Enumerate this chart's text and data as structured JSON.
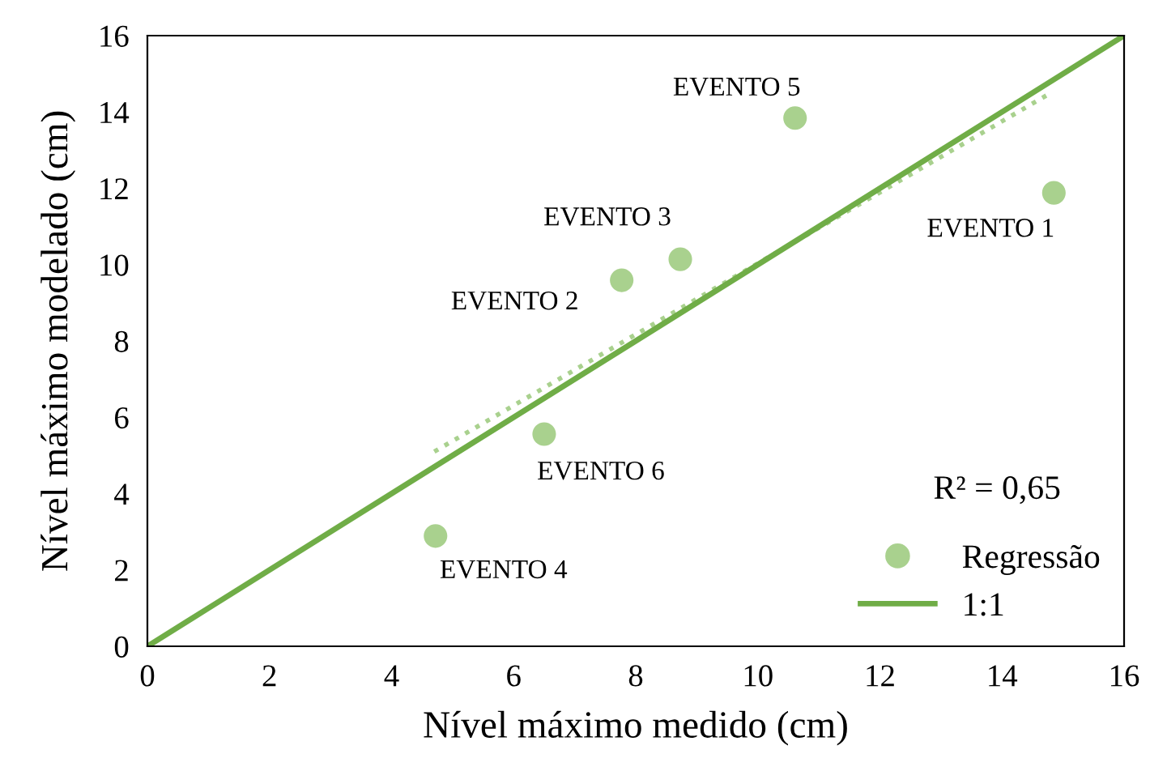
{
  "chart_data": {
    "type": "scatter",
    "xlabel": "Nível máximo medido (cm)",
    "ylabel": "Nível máximo modelado (cm)",
    "xlim": [
      0,
      16
    ],
    "ylim": [
      0,
      16
    ],
    "xticks": [
      0,
      2,
      4,
      6,
      8,
      10,
      12,
      14,
      16
    ],
    "yticks": [
      0,
      2,
      4,
      6,
      8,
      10,
      12,
      14,
      16
    ],
    "grid": false,
    "legend": "bottom right",
    "series": [
      {
        "name": "Regressão",
        "color": "#a9d18e",
        "marker": "circle",
        "x": [
          14.85,
          7.77,
          8.73,
          4.72,
          10.61,
          6.5
        ],
        "values": [
          11.88,
          9.59,
          10.14,
          2.89,
          13.84,
          5.56
        ]
      },
      {
        "type": "line",
        "color": "#a9d18e",
        "line_style": "dotted",
        "x": [
          4.7,
          14.8
        ],
        "values": [
          5.1,
          14.5
        ]
      },
      {
        "name": "1:1",
        "type": "line",
        "color": "#70ad47",
        "line_style": "solid",
        "x": [
          0,
          16
        ],
        "values": [
          0,
          16
        ]
      }
    ],
    "annotations": [
      {
        "text": "EVENTO 1",
        "x": 14.85,
        "y": 11.88
      },
      {
        "text": "EVENTO 2",
        "x": 7.77,
        "y": 9.59
      },
      {
        "text": "EVENTO 3",
        "x": 8.73,
        "y": 10.14
      },
      {
        "text": "EVENTO 4",
        "x": 4.72,
        "y": 2.89
      },
      {
        "text": "EVENTO 5",
        "x": 10.61,
        "y": 13.84
      },
      {
        "text": "EVENTO 6",
        "x": 6.5,
        "y": 5.56
      },
      "R² = 0,65"
    ]
  }
}
